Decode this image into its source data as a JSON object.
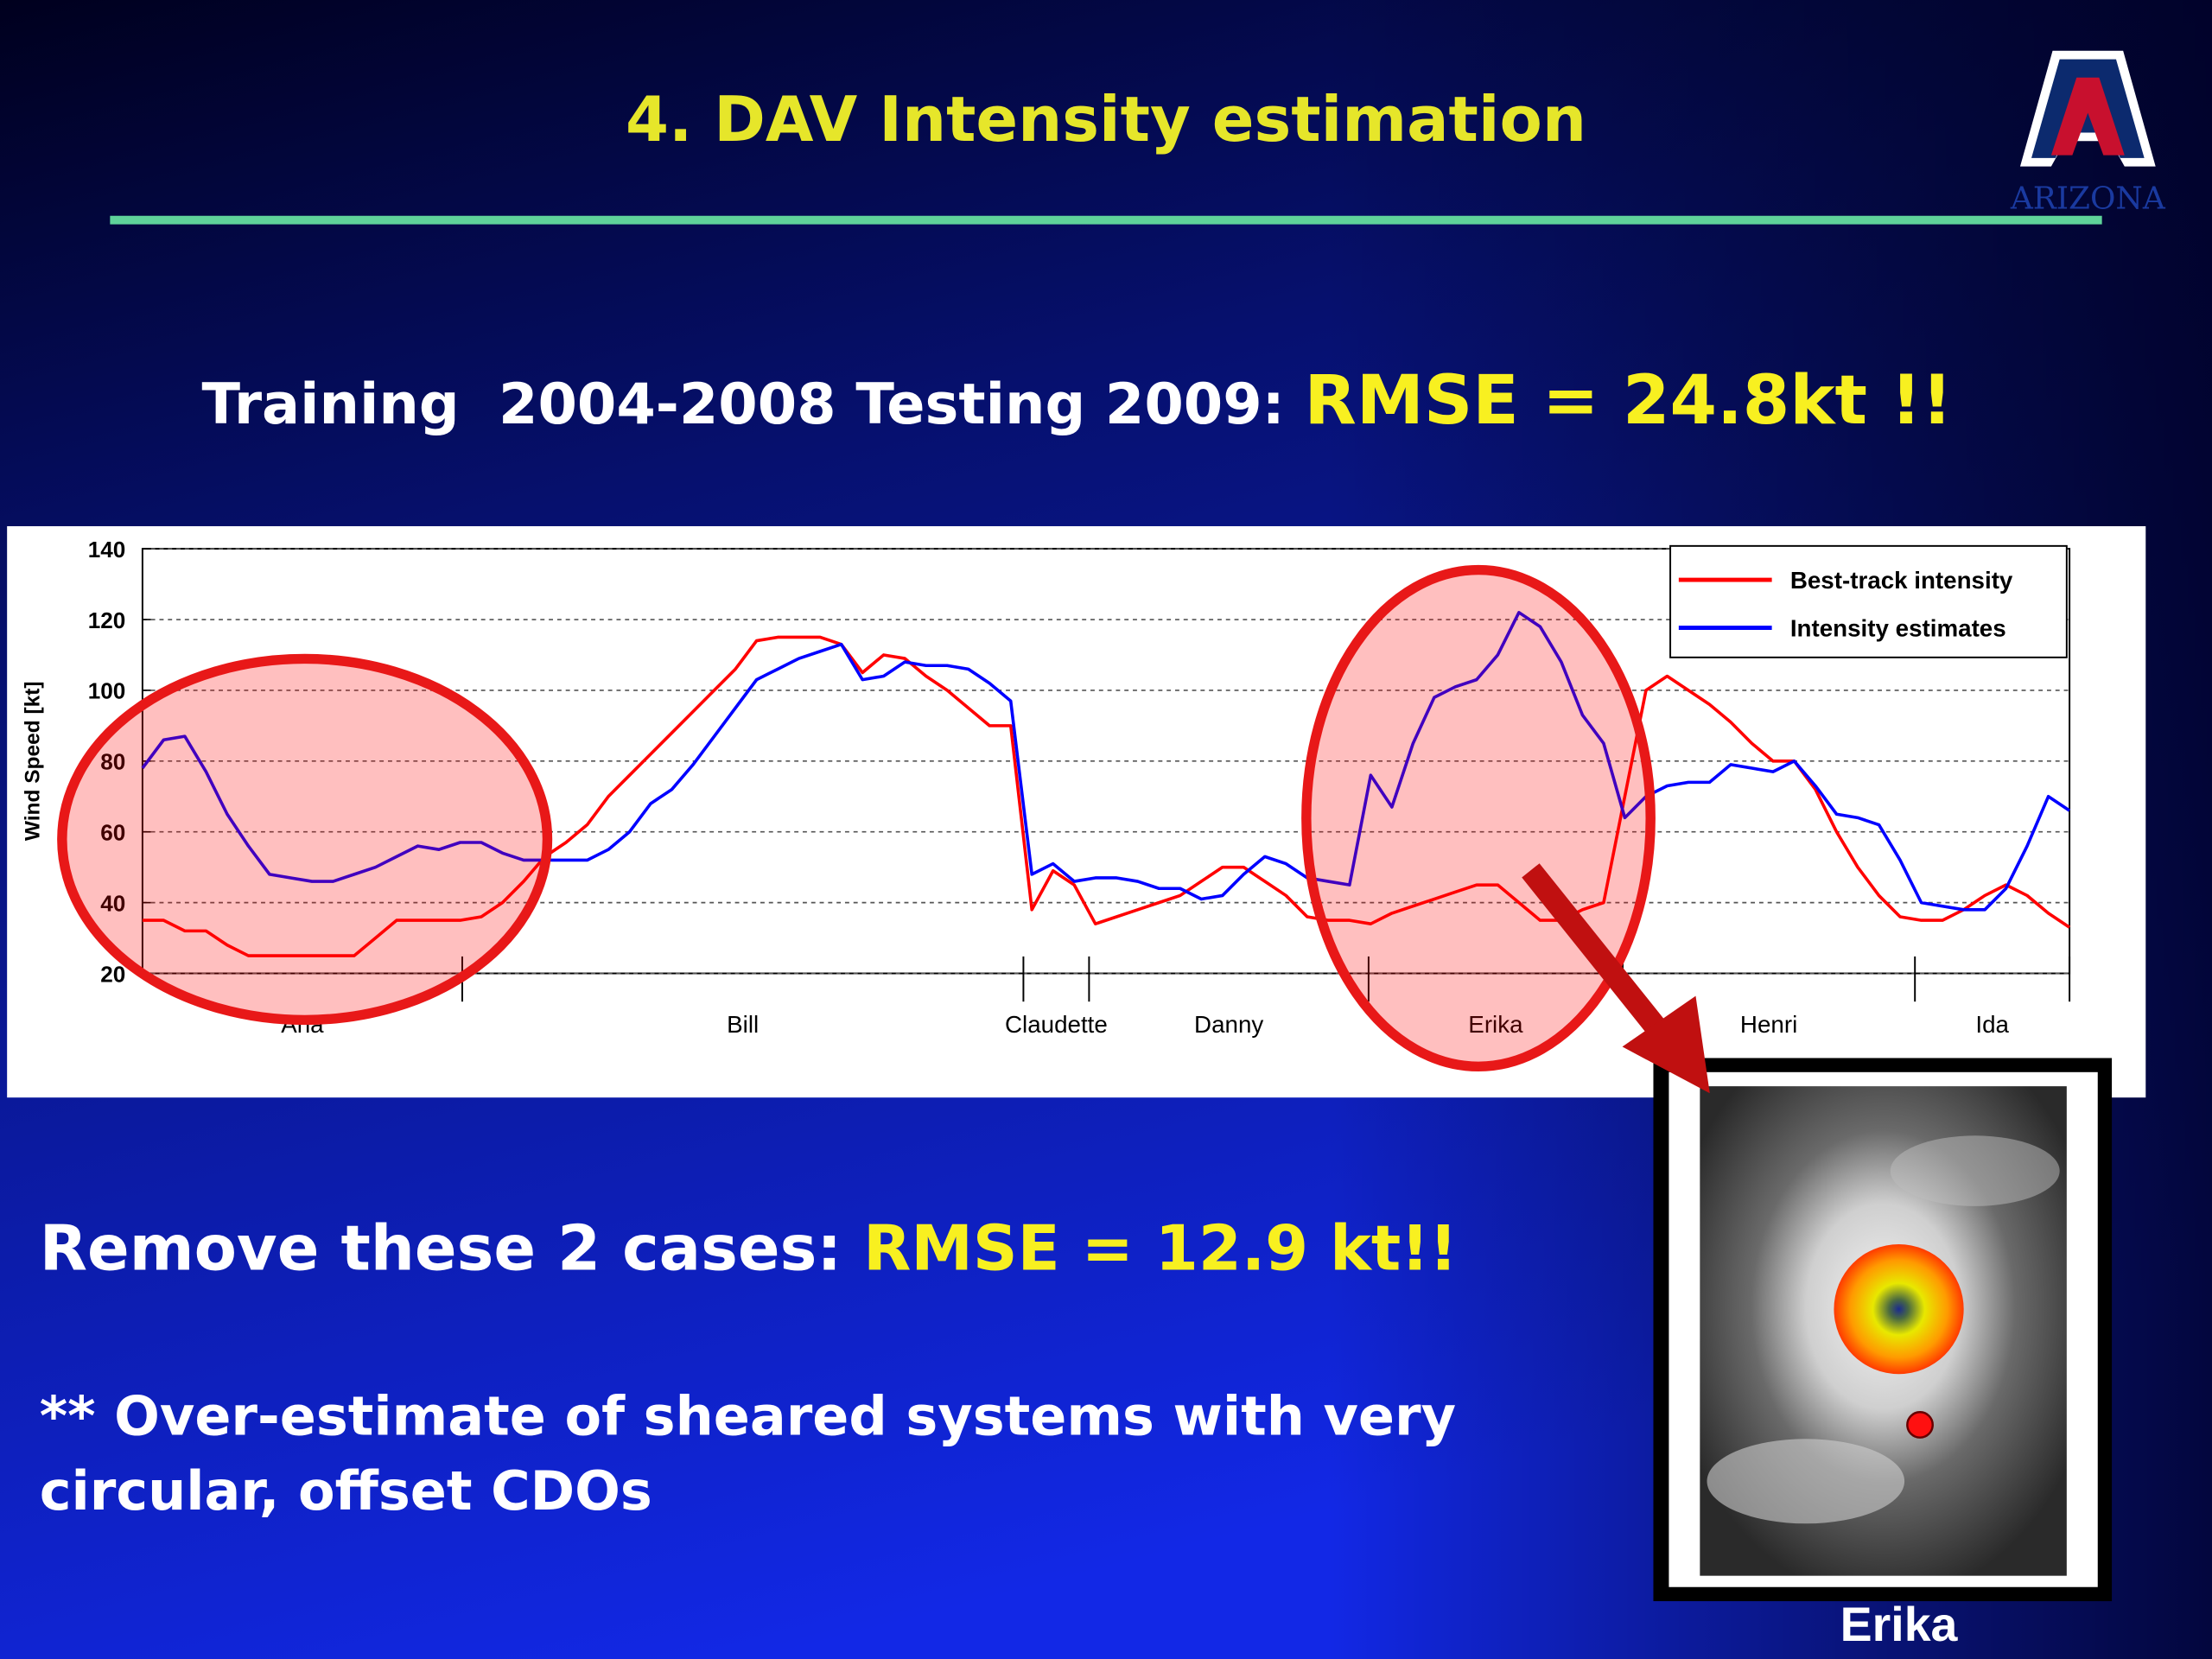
{
  "slide": {
    "title": "4. DAV Intensity estimation",
    "training": "Training  2004-2008 Testing 2009: ",
    "training_rmse": "RMSE = 24.8kt !!",
    "remove": "Remove these 2 cases: ",
    "remove_rmse": "RMSE = 12.9 kt!!",
    "note_lines": [
      "** Over-estimate of sheared systems with very",
      "circular, offset CDOs"
    ]
  },
  "logo": {
    "text": "ARIZONA"
  },
  "inset": {
    "caption": "Erika"
  },
  "chart_data": {
    "type": "line",
    "ylabel": "Wind Speed [kt]",
    "x": [
      0,
      1,
      2,
      3,
      4,
      5,
      6,
      7,
      8,
      9,
      10,
      11,
      12,
      13,
      14,
      15,
      16,
      17,
      18,
      19,
      20,
      21,
      22,
      23,
      24,
      25,
      26,
      27,
      28,
      29,
      30,
      31,
      32,
      33,
      34,
      35,
      36,
      37,
      38,
      39,
      40,
      41,
      42,
      43,
      44,
      45,
      46,
      47,
      48,
      49,
      50,
      51,
      52,
      53,
      54,
      55,
      56,
      57,
      58,
      59,
      60,
      61,
      62,
      63,
      64,
      65,
      66,
      67,
      68,
      69,
      70,
      71,
      72,
      73,
      74,
      75,
      76,
      77,
      78,
      79,
      80,
      81,
      82,
      83,
      84,
      85,
      86,
      87,
      88,
      89,
      90,
      91
    ],
    "xlim": [
      0,
      91
    ],
    "ylim": [
      20,
      140
    ],
    "yticks": [
      20,
      40,
      60,
      80,
      100,
      120,
      140
    ],
    "grid": true,
    "legend": "upper right",
    "storms": [
      {
        "name": "Ana",
        "start": 0,
        "end": 15.1
      },
      {
        "name": "Bill",
        "start": 15.1,
        "end": 41.6
      },
      {
        "name": "Claudette",
        "start": 41.6,
        "end": 44.7
      },
      {
        "name": "Danny",
        "start": 44.7,
        "end": 57.9
      },
      {
        "name": "Erika",
        "start": 57.9,
        "end": 69.9
      },
      {
        "name": "Henri",
        "start": 69.9,
        "end": 83.7
      },
      {
        "name": "Ida",
        "start": 83.7,
        "end": 91
      }
    ],
    "series": [
      {
        "name": "Best-track intensity",
        "color": "#ff0000",
        "values": [
          35,
          35,
          32,
          32,
          28,
          25,
          25,
          25,
          25,
          25,
          25,
          30,
          35,
          35,
          35,
          35,
          36,
          40,
          46,
          53,
          57,
          62,
          70,
          76,
          82,
          88,
          94,
          100,
          106,
          114,
          115,
          115,
          115,
          113,
          105,
          110,
          109,
          104,
          100,
          95,
          90,
          90,
          38,
          49,
          45,
          34,
          36,
          38,
          40,
          42,
          46,
          50,
          50,
          46,
          42,
          36,
          35,
          35,
          34,
          37,
          39,
          41,
          43,
          45,
          45,
          40,
          35,
          35,
          38,
          40,
          70,
          100,
          104,
          100,
          96,
          91,
          85,
          80,
          80,
          72,
          60,
          50,
          42,
          36,
          35,
          35,
          38,
          42,
          45,
          42,
          37,
          33
        ]
      },
      {
        "name": "Intensity estimates",
        "color": "#0000ff",
        "values": [
          78,
          86,
          87,
          77,
          65,
          56,
          48,
          47,
          46,
          46,
          48,
          50,
          53,
          56,
          55,
          57,
          57,
          54,
          52,
          52,
          52,
          52,
          55,
          60,
          68,
          72,
          79,
          87,
          95,
          103,
          106,
          109,
          111,
          113,
          103,
          104,
          108,
          107,
          107,
          106,
          102,
          97,
          48,
          51,
          46,
          47,
          47,
          46,
          44,
          44,
          41,
          42,
          48,
          53,
          51,
          47,
          46,
          45,
          76,
          67,
          85,
          98,
          101,
          103,
          110,
          122,
          118,
          108,
          93,
          85,
          64,
          70,
          73,
          74,
          74,
          79,
          78,
          77,
          80,
          73,
          65,
          64,
          62,
          52,
          40,
          39,
          38,
          38,
          44,
          56,
          70,
          66
        ]
      }
    ]
  }
}
